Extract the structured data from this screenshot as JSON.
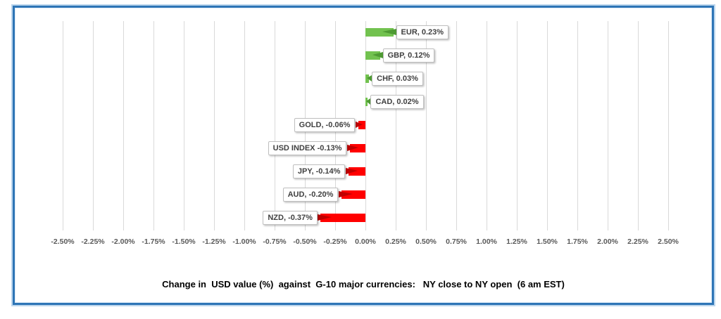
{
  "frame": {
    "border_color": "#2E75B6",
    "outer_highlight_color": "#BDD7EE",
    "background": "#FFFFFF"
  },
  "chart_data": {
    "type": "bar",
    "orientation": "horizontal",
    "title": "Change in  USD value (%)  against  G-10 major currencies:   NY close to NY open  (6 am EST)",
    "categories": [
      "EUR",
      "GBP",
      "CHF",
      "CAD",
      "GOLD",
      "USD INDEX",
      "JPY",
      "AUD",
      "NZD"
    ],
    "values": [
      0.23,
      0.12,
      0.03,
      0.02,
      -0.06,
      -0.13,
      -0.14,
      -0.2,
      -0.37
    ],
    "data_labels": [
      "EUR, 0.23%",
      "GBP, 0.12%",
      "CHF, 0.03%",
      "CAD, 0.02%",
      "GOLD, -0.06%",
      "USD INDEX -0.13%",
      "JPY, -0.14%",
      "AUD, -0.20%",
      "NZD, -0.37%"
    ],
    "x_axis": {
      "min": -2.5,
      "max": 2.5,
      "step": 0.25,
      "tick_labels": [
        "-2.50%",
        "-2.25%",
        "-2.00%",
        "-1.75%",
        "-1.50%",
        "-1.25%",
        "-1.00%",
        "-0.75%",
        "-0.50%",
        "-0.25%",
        "0.00%",
        "0.25%",
        "0.50%",
        "0.75%",
        "1.00%",
        "1.25%",
        "1.50%",
        "1.75%",
        "2.00%",
        "2.25%",
        "2.50%"
      ]
    },
    "grid": true,
    "legend": false,
    "colors": {
      "positive_bar": "#72C24F",
      "positive_tail": "#4E9A33",
      "negative_bar": "#FF0000",
      "negative_tail": "#C00000",
      "gridline": "#D9D9D9",
      "axis_text": "#595959",
      "label_text": "#404040",
      "label_border": "#BFBFBF"
    }
  }
}
